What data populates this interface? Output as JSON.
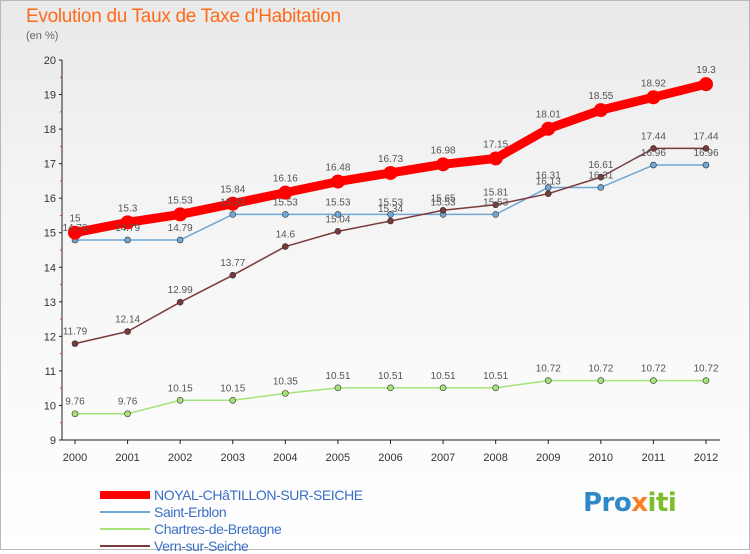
{
  "header": {
    "title": "Evolution du Taux de Taxe d'Habitation",
    "subtitle": "(en %)"
  },
  "logo": {
    "text": "Proxiti",
    "colors": [
      "#2e89c7",
      "#ff7f1e",
      "#7cbd2c"
    ]
  },
  "chart_data": {
    "type": "line",
    "x": [
      "2000",
      "2001",
      "2002",
      "2003",
      "2004",
      "2005",
      "2006",
      "2007",
      "2008",
      "2009",
      "2010",
      "2011",
      "2012"
    ],
    "ylim": [
      9,
      20
    ],
    "yticks": [
      "9",
      "10",
      "11",
      "12",
      "13",
      "14",
      "15",
      "16",
      "17",
      "18",
      "19",
      "20"
    ],
    "grid": false,
    "legend_position": "bottom-left",
    "series": [
      {
        "name": "NOYAL-CHâTILLON-SUR-SEICHE",
        "color": "#ff0000",
        "values": [
          15,
          15.3,
          15.53,
          15.84,
          16.16,
          16.48,
          16.73,
          16.98,
          17.15,
          18.01,
          18.55,
          18.92,
          19.3
        ],
        "labels": [
          "15",
          "15.3",
          "15.53",
          "15.84",
          "16.16",
          "16.48",
          "16.73",
          "16.98",
          "17.15",
          "18.01",
          "18.55",
          "18.92",
          "19.3"
        ]
      },
      {
        "name": "Saint-Erblon",
        "color": "#6fa7d6",
        "values": [
          14.79,
          14.79,
          14.79,
          15.53,
          15.53,
          15.53,
          15.53,
          15.53,
          15.53,
          16.31,
          16.31,
          16.96,
          16.96
        ],
        "labels": [
          "14.79",
          "14.79",
          "14.79",
          "15.53",
          "15.53",
          "15.53",
          "15.53",
          "15.53",
          "15.53",
          "16.31",
          "16.31",
          "16.96",
          "16.96"
        ]
      },
      {
        "name": "Chartres-de-Bretagne",
        "color": "#a6e27a",
        "values": [
          9.76,
          9.76,
          10.15,
          10.15,
          10.35,
          10.51,
          10.51,
          10.51,
          10.51,
          10.72,
          10.72,
          10.72,
          10.72
        ],
        "labels": [
          "9.76",
          "9.76",
          "10.15",
          "10.15",
          "10.35",
          "10.51",
          "10.51",
          "10.51",
          "10.51",
          "10.72",
          "10.72",
          "10.72",
          "10.72"
        ]
      },
      {
        "name": "Vern-sur-Seiche",
        "color": "#7a3a3a",
        "values": [
          11.79,
          12.14,
          12.99,
          13.77,
          14.6,
          15.04,
          15.34,
          15.65,
          15.81,
          16.13,
          16.61,
          17.44,
          17.44
        ],
        "labels": [
          "11.79",
          "12.14",
          "12.99",
          "13.77",
          "14.6",
          "15.04",
          "15.34",
          "15.65",
          "15.81",
          "16.13",
          "16.61",
          "17.44",
          "17.44"
        ]
      }
    ]
  }
}
